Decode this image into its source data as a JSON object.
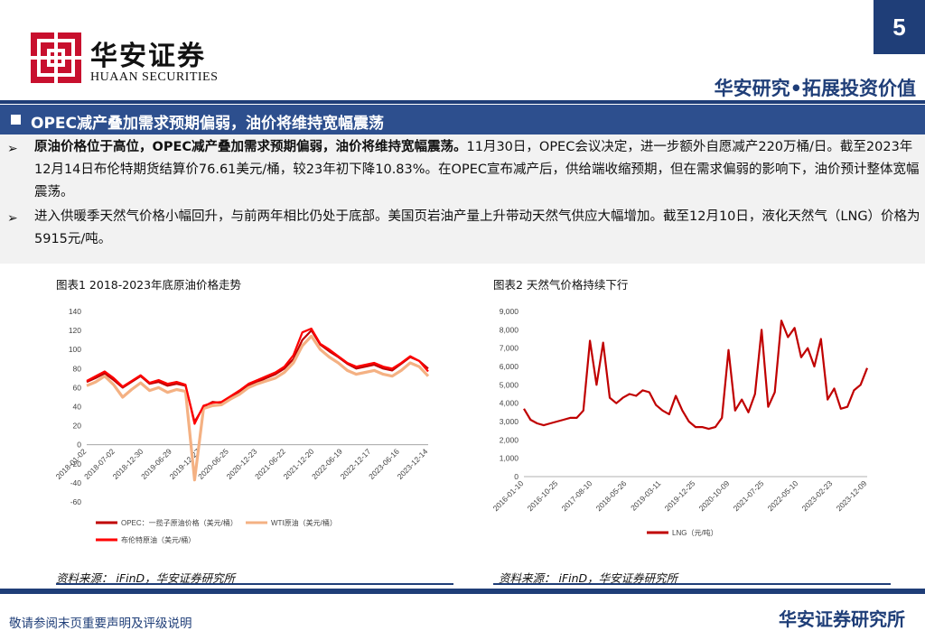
{
  "header": {
    "brand_cn": "华安证券",
    "brand_en": "HUAAN SECURITIES",
    "page_number": "5",
    "slogan": "华安研究•拓展投资价值"
  },
  "section": {
    "title": "OPEC减产叠加需求预期偏弱，油价将维持宽幅震荡"
  },
  "bullets": [
    {
      "marker": "➢",
      "bold": "原油价格位于高位，OPEC减产叠加需求预期偏弱，油价将维持宽幅震荡。",
      "text": "11月30日，OPEC会议决定，进一步额外自愿减产220万桶/日。截至2023年12月14日布伦特期货结算价76.61美元/桶，较23年初下降10.83%。在OPEC宣布减产后，供给端收缩预期，但在需求偏弱的影响下，油价预计整体宽幅震荡。"
    },
    {
      "marker": "➢",
      "bold": "",
      "text": "进入供暖季天然气价格小幅回升，与前两年相比仍处于底部。美国页岩油产量上升带动天然气供应大幅增加。截至12月10日，液化天然气（LNG）价格为5915元/吨。"
    }
  ],
  "charts": {
    "left_title": "图表1 2018-2023年底原油价格走势",
    "right_title": "图表2 天然气价格持续下行",
    "left_source": "资料来源： iFinD，华安证券研究所",
    "right_source": "资料来源： iFinD，华安证券研究所"
  },
  "chart_data": [
    {
      "type": "line",
      "title": "图表1 2018-2023年底原油价格走势",
      "x_ticks": [
        "2018-01-02",
        "2018-07-02",
        "2018-12-30",
        "2019-06-29",
        "2019-12-27",
        "2020-06-25",
        "2020-12-23",
        "2021-06-22",
        "2021-12-20",
        "2022-06-19",
        "2022-12-17",
        "2023-06-16",
        "2023-12-14"
      ],
      "y_ticks": [
        "-60",
        "-40",
        "-20",
        "0",
        "20",
        "40",
        "60",
        "80",
        "100",
        "120",
        "140"
      ],
      "ylim": [
        -60,
        140
      ],
      "series": [
        {
          "name": "OPEC：一揽子原油价格（美元/桶）",
          "color": "#c00000",
          "values": [
            66,
            70,
            75,
            68,
            60,
            66,
            72,
            64,
            66,
            62,
            64,
            62,
            24,
            40,
            45,
            44,
            50,
            55,
            62,
            66,
            70,
            74,
            80,
            90,
            110,
            120,
            105,
            98,
            92,
            85,
            80,
            82,
            84,
            80,
            78,
            85,
            92,
            88,
            80
          ]
        },
        {
          "name": "WTI原油（美元/桶）",
          "color": "#f4b183",
          "values": [
            62,
            66,
            72,
            63,
            50,
            58,
            65,
            57,
            60,
            55,
            58,
            56,
            -37,
            38,
            41,
            42,
            48,
            53,
            60,
            64,
            67,
            70,
            76,
            86,
            104,
            114,
            100,
            92,
            86,
            78,
            74,
            76,
            78,
            74,
            72,
            78,
            86,
            82,
            72
          ]
        },
        {
          "name": "布伦特原油（美元/桶）",
          "color": "#ff0000",
          "values": [
            67,
            72,
            77,
            70,
            61,
            67,
            73,
            65,
            68,
            64,
            66,
            63,
            22,
            41,
            44,
            45,
            51,
            57,
            64,
            68,
            72,
            76,
            82,
            94,
            118,
            122,
            106,
            100,
            93,
            86,
            82,
            84,
            86,
            82,
            80,
            86,
            93,
            88,
            77
          ]
        }
      ]
    },
    {
      "type": "line",
      "title": "图表2 天然气价格持续下行",
      "x_ticks": [
        "2016-01-10",
        "2016-10-25",
        "2017-08-10",
        "2018-05-26",
        "2019-03-11",
        "2019-12-25",
        "2020-10-09",
        "2021-07-25",
        "2022-05-10",
        "2023-02-23",
        "2023-12-09"
      ],
      "y_ticks": [
        "0",
        "1,000",
        "2,000",
        "3,000",
        "4,000",
        "5,000",
        "6,000",
        "7,000",
        "8,000",
        "9,000"
      ],
      "ylim": [
        0,
        9000
      ],
      "series": [
        {
          "name": "LNG（元/吨）",
          "color": "#c00000",
          "values": [
            3700,
            3100,
            2900,
            2800,
            2900,
            3000,
            3100,
            3200,
            3200,
            3600,
            7400,
            5000,
            7300,
            4300,
            4000,
            4300,
            4500,
            4400,
            4700,
            4600,
            3900,
            3600,
            3400,
            4400,
            3600,
            3000,
            2700,
            2700,
            2600,
            2700,
            3200,
            6900,
            3600,
            4200,
            3500,
            4500,
            8000,
            3800,
            4600,
            8500,
            7600,
            8100,
            6500,
            7000,
            6000,
            7500,
            4200,
            4800,
            3700,
            3800,
            4700,
            5000,
            5915
          ]
        }
      ]
    }
  ],
  "footer": {
    "disclaimer": "敬请参阅末页重要声明及评级说明",
    "org": "华安证券研究所"
  }
}
